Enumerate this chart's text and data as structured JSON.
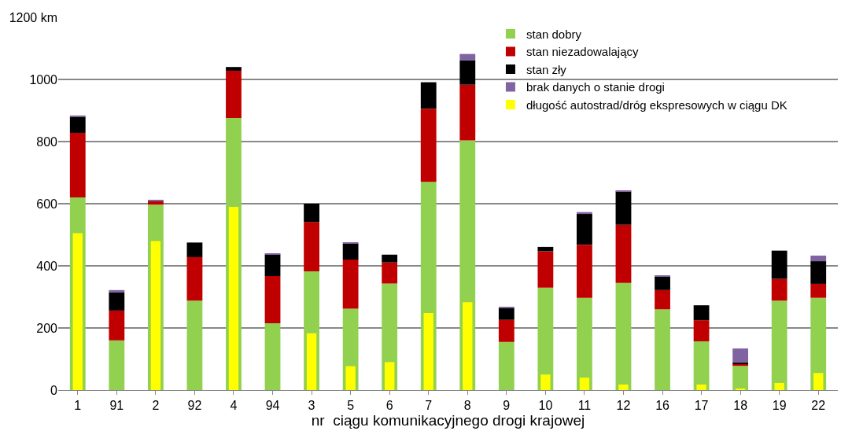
{
  "chart_data": [
    {
      "type": "bar",
      "stacked": true,
      "xlabel": "nr  ciągu komunikacyjnego drogi krajowej",
      "categories": [
        "1",
        "91",
        "2",
        "92",
        "4",
        "94",
        "3",
        "5",
        "6",
        "7",
        "8",
        "9",
        "10",
        "11",
        "12",
        "16",
        "17",
        "18",
        "19",
        "22"
      ],
      "series": [
        {
          "name": "stan dobry",
          "color": "#92d050",
          "values": [
            620,
            160,
            597,
            288,
            876,
            215,
            382,
            262,
            343,
            670,
            804,
            155,
            330,
            297,
            345,
            260,
            157,
            78,
            288,
            297
          ]
        },
        {
          "name": "stan niezadowalający",
          "color": "#c00000",
          "values": [
            208,
            96,
            13,
            140,
            152,
            152,
            159,
            158,
            68,
            236,
            179,
            71,
            117,
            171,
            187,
            62,
            68,
            6,
            70,
            45
          ]
        },
        {
          "name": "stan zły",
          "color": "#000000",
          "values": [
            52,
            58,
            0,
            47,
            12,
            70,
            59,
            52,
            25,
            85,
            79,
            38,
            14,
            99,
            108,
            44,
            48,
            4,
            91,
            73
          ]
        },
        {
          "name": "brak danych o stanie drogi",
          "color": "#8064a2",
          "values": [
            4,
            8,
            2,
            0,
            0,
            2,
            0,
            2,
            0,
            0,
            20,
            2,
            0,
            6,
            3,
            2,
            0,
            46,
            0,
            18
          ]
        }
      ],
      "ylim": [
        0,
        1200
      ],
      "yticks": [
        0,
        200,
        400,
        600,
        800,
        1000,
        {
          "value": 1200,
          "label": "1200 km"
        }
      ],
      "grid": "y",
      "legend": "top right"
    },
    {
      "type": "bar",
      "categories": [
        "1",
        "91",
        "2",
        "92",
        "4",
        "94",
        "3",
        "5",
        "6",
        "7",
        "8",
        "9",
        "10",
        "11",
        "12",
        "16",
        "17",
        "18",
        "19",
        "22"
      ],
      "series": [
        {
          "name": "długość autostrad/dróg ekspresowych w ciągu DK",
          "color": "#ffff00",
          "values": [
            505,
            0,
            480,
            0,
            590,
            0,
            183,
            77,
            90,
            248,
            283,
            0,
            50,
            40,
            18,
            0,
            18,
            3,
            23,
            55
          ]
        }
      ],
      "ylim": [
        0,
        1200
      ],
      "yticks": [
        0,
        200,
        400,
        600,
        800,
        1000,
        1200
      ],
      "tick_labels": false,
      "legend": "top right"
    }
  ]
}
